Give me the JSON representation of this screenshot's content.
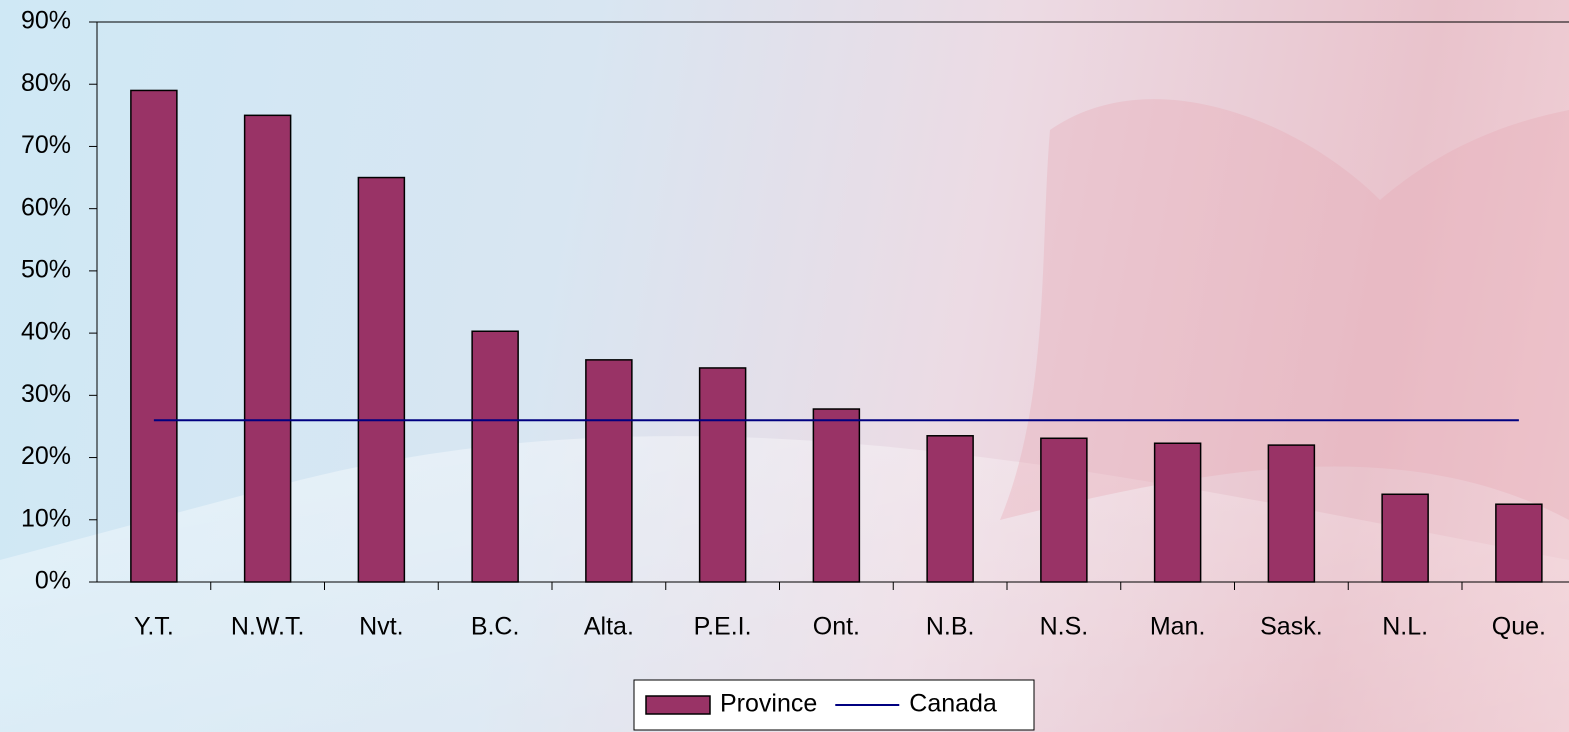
{
  "chart_data": {
    "type": "bar",
    "categories": [
      "Y.T.",
      "N.W.T.",
      "Nvt.",
      "B.C.",
      "Alta.",
      "P.E.I.",
      "Ont.",
      "N.B.",
      "N.S.",
      "Man.",
      "Sask.",
      "N.L.",
      "Que."
    ],
    "series": [
      {
        "name": "Province",
        "type": "bar",
        "color": "#993366",
        "values": [
          79,
          75,
          65,
          40.3,
          35.7,
          34.4,
          27.8,
          23.5,
          23.1,
          22.3,
          22.0,
          14.1,
          12.5
        ]
      },
      {
        "name": "Canada",
        "type": "line",
        "color": "#000080",
        "values": [
          26,
          26,
          26,
          26,
          26,
          26,
          26,
          26,
          26,
          26,
          26,
          26,
          26
        ]
      }
    ],
    "ylim": [
      0,
      90
    ],
    "yticks": [
      {
        "value": 0,
        "label": "0%"
      },
      {
        "value": 10,
        "label": "10%"
      },
      {
        "value": 20,
        "label": "20%"
      },
      {
        "value": 30,
        "label": "30%"
      },
      {
        "value": 40,
        "label": "40%"
      },
      {
        "value": 50,
        "label": "50%"
      },
      {
        "value": 60,
        "label": "60%"
      },
      {
        "value": 70,
        "label": "70%"
      },
      {
        "value": 80,
        "label": "80%"
      },
      {
        "value": 90,
        "label": "90%"
      }
    ],
    "legend": "bottom"
  }
}
